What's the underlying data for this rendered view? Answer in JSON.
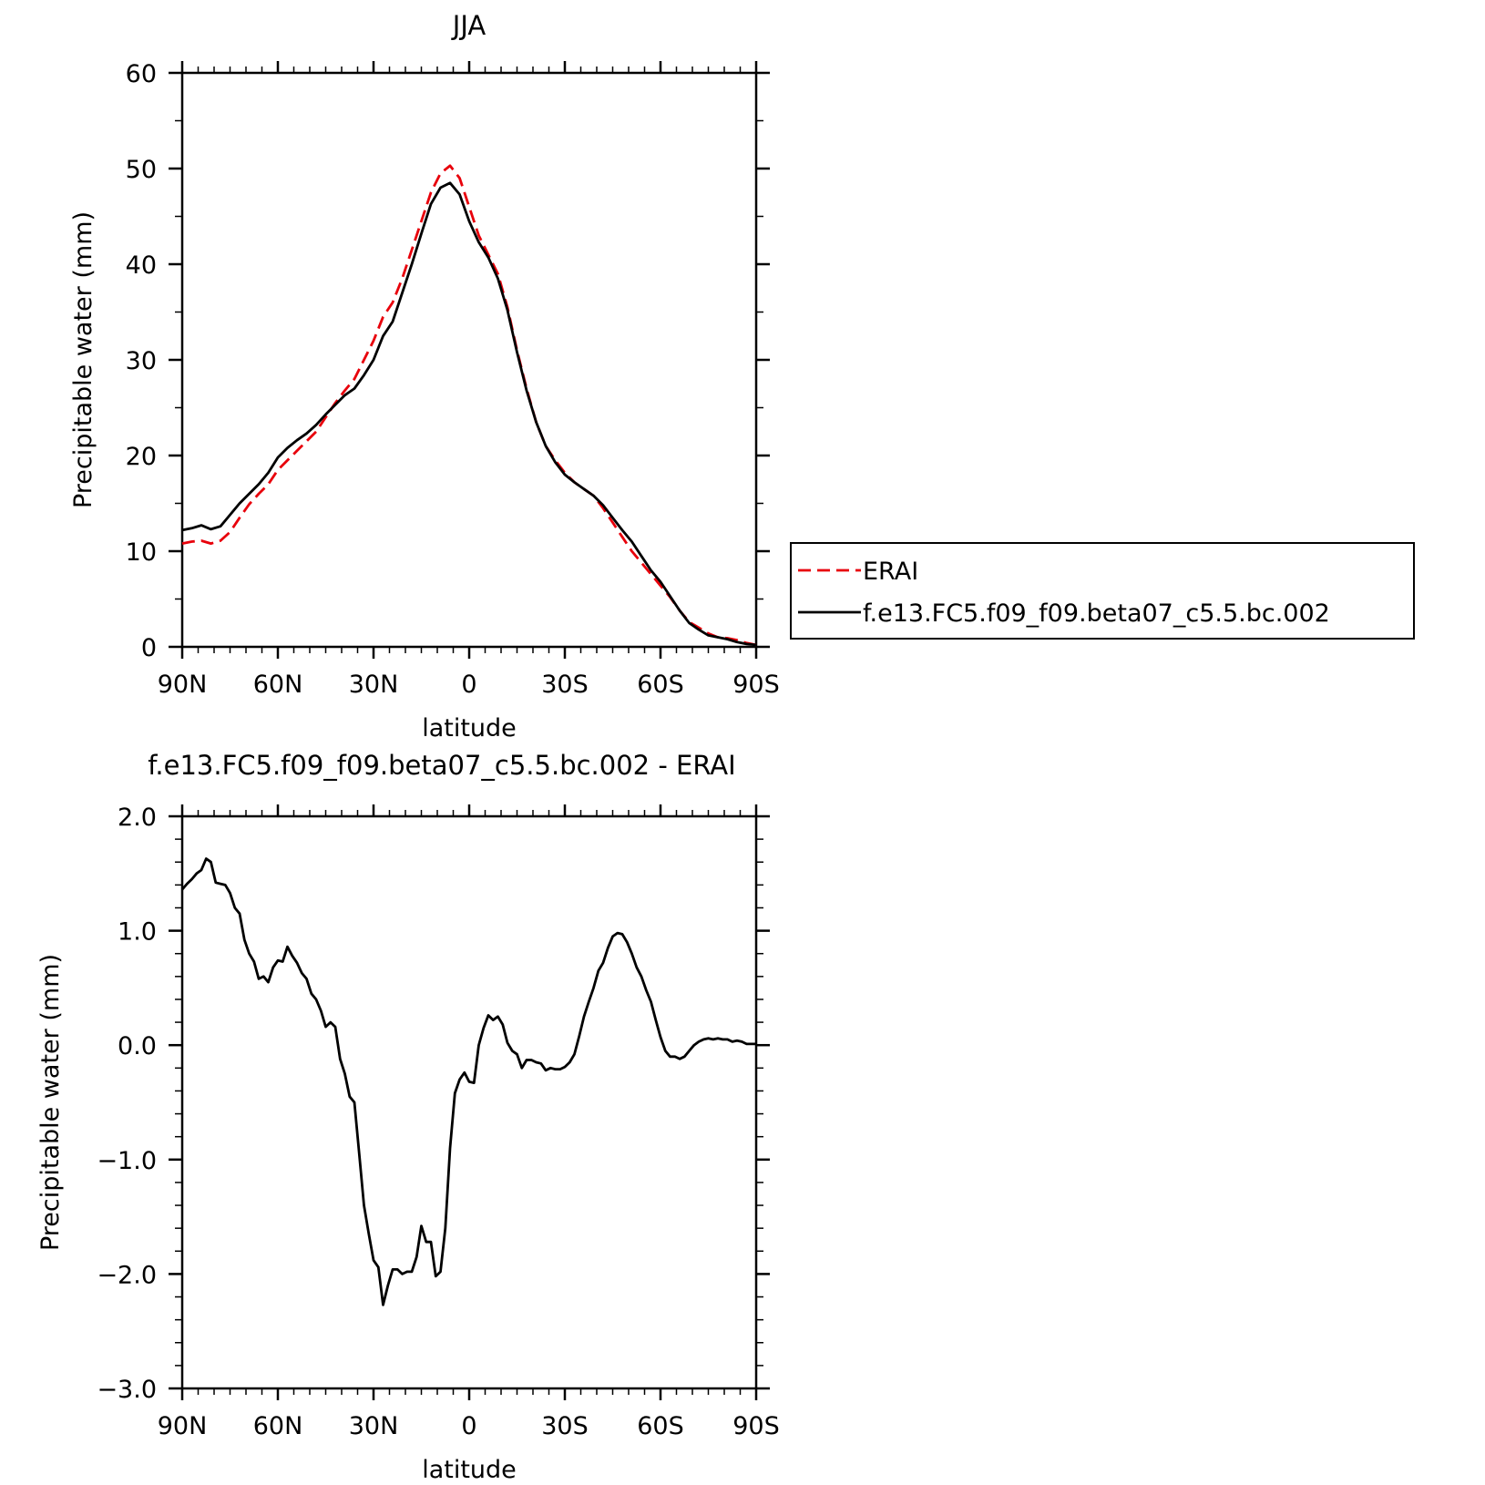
{
  "chart_data": [
    {
      "type": "line",
      "title": "JJA",
      "xlabel": "latitude",
      "ylabel": "Precipitable water (mm)",
      "xlim": [
        90,
        -90
      ],
      "ylim": [
        0,
        60
      ],
      "x_ticks": [
        90,
        60,
        30,
        0,
        -30,
        -60,
        -90
      ],
      "x_tick_labels": [
        "90N",
        "60N",
        "30N",
        "0",
        "30S",
        "60S",
        "90S"
      ],
      "y_ticks": [
        0,
        10,
        20,
        30,
        40,
        50,
        60
      ],
      "y_tick_labels": [
        "0",
        "10",
        "20",
        "30",
        "40",
        "50",
        "60"
      ],
      "grid": false,
      "legend_position": "right",
      "series": [
        {
          "name": "ERAI",
          "color": "#e8000b",
          "dash": "dashed",
          "x": [
            90,
            87,
            84,
            81,
            78,
            75,
            72,
            69,
            66,
            63,
            60,
            57,
            54,
            51,
            48,
            45,
            42,
            39,
            36,
            33,
            30,
            27,
            24,
            21,
            18,
            15,
            12,
            9,
            6,
            3,
            0,
            -3,
            -6,
            -9,
            -12,
            -15,
            -18,
            -21,
            -24,
            -27,
            -30,
            -33,
            -36,
            -39,
            -42,
            -45,
            -48,
            -51,
            -54,
            -57,
            -60,
            -63,
            -66,
            -69,
            -72,
            -75,
            -78,
            -81,
            -84,
            -87,
            -90
          ],
          "y": [
            10.8,
            11.0,
            11.1,
            10.8,
            11.1,
            12.0,
            13.5,
            14.9,
            16.0,
            17.0,
            18.5,
            19.5,
            20.5,
            21.5,
            22.5,
            24.0,
            25.5,
            26.8,
            28.0,
            30.0,
            32.0,
            34.5,
            36.0,
            38.5,
            41.5,
            44.5,
            47.5,
            49.5,
            50.3,
            49.0,
            46.0,
            43.0,
            41.0,
            39.0,
            35.5,
            31.0,
            27.0,
            23.5,
            21.0,
            19.5,
            18.2,
            17.2,
            16.5,
            15.8,
            14.5,
            13.0,
            11.5,
            10.0,
            8.8,
            7.6,
            6.4,
            5.2,
            3.8,
            2.6,
            2.0,
            1.4,
            1.0,
            0.9,
            0.7,
            0.4,
            0.2
          ]
        },
        {
          "name": "f.e13.FC5.f09_f09.beta07_c5.5.bc.002",
          "color": "#000000",
          "dash": "solid",
          "x": [
            90,
            87,
            84,
            81,
            78,
            75,
            72,
            69,
            66,
            63,
            60,
            57,
            54,
            51,
            48,
            45,
            42,
            39,
            36,
            33,
            30,
            27,
            24,
            21,
            18,
            15,
            12,
            9,
            6,
            3,
            0,
            -3,
            -6,
            -9,
            -12,
            -15,
            -18,
            -21,
            -24,
            -27,
            -30,
            -33,
            -36,
            -39,
            -42,
            -45,
            -48,
            -51,
            -54,
            -57,
            -60,
            -63,
            -66,
            -69,
            -72,
            -75,
            -78,
            -81,
            -84,
            -87,
            -90
          ],
          "y": [
            12.2,
            12.4,
            12.7,
            12.3,
            12.6,
            13.8,
            15.0,
            16.0,
            17.0,
            18.2,
            19.8,
            20.8,
            21.6,
            22.3,
            23.2,
            24.3,
            25.3,
            26.3,
            27.0,
            28.4,
            30.0,
            32.5,
            34.0,
            37.0,
            40.0,
            43.2,
            46.3,
            48.0,
            48.5,
            47.3,
            44.5,
            42.3,
            40.7,
            38.5,
            35.2,
            30.8,
            26.8,
            23.5,
            21.0,
            19.3,
            18.0,
            17.2,
            16.5,
            15.8,
            14.8,
            13.5,
            12.2,
            11.0,
            9.5,
            8.0,
            6.8,
            5.3,
            3.8,
            2.5,
            1.8,
            1.2,
            1.0,
            0.8,
            0.5,
            0.3,
            0.2
          ]
        }
      ]
    },
    {
      "type": "line",
      "title": "f.e13.FC5.f09_f09.beta07_c5.5.bc.002 - ERAI",
      "xlabel": "latitude",
      "ylabel": "Precipitable water (mm)",
      "xlim": [
        90,
        -90
      ],
      "ylim": [
        -3.0,
        2.0
      ],
      "x_ticks": [
        90,
        60,
        30,
        0,
        -30,
        -60,
        -90
      ],
      "x_tick_labels": [
        "90N",
        "60N",
        "30N",
        "0",
        "30S",
        "60S",
        "90S"
      ],
      "y_ticks": [
        2.0,
        1.0,
        0.0,
        -1.0,
        -2.0,
        -3.0
      ],
      "y_tick_labels": [
        "2.0",
        "1.0",
        "0.0",
        "−1.0",
        "−2.0",
        "−3.0"
      ],
      "grid": false,
      "series": [
        {
          "name": "",
          "color": "#000000",
          "dash": "solid",
          "x": [
            90,
            88.5,
            87,
            85.5,
            84,
            82.5,
            81,
            79.5,
            78,
            76.5,
            75,
            73.5,
            72,
            70.5,
            69,
            67.5,
            66,
            64.5,
            63,
            61.5,
            60,
            58.5,
            57,
            55.5,
            54,
            52.5,
            51,
            49.5,
            48,
            46.5,
            45,
            43.5,
            42,
            40.5,
            39,
            37.5,
            36,
            34.5,
            33,
            31.5,
            30,
            28.5,
            27,
            25.5,
            24,
            22.5,
            21,
            19.5,
            18,
            16.5,
            15,
            13.5,
            12,
            10.5,
            9,
            7.5,
            6,
            4.5,
            3,
            1.5,
            0,
            -1.5,
            -3,
            -4.5,
            -6,
            -7.5,
            -9,
            -10.5,
            -12,
            -13.5,
            -15,
            -16.5,
            -18,
            -19.5,
            -21,
            -22.5,
            -24,
            -25.5,
            -27,
            -28.5,
            -30,
            -31.5,
            -33,
            -34.5,
            -36,
            -37.5,
            -39,
            -40.5,
            -42,
            -43.5,
            -45,
            -46.5,
            -48,
            -49.5,
            -51,
            -52.5,
            -54,
            -55.5,
            -57,
            -58.5,
            -60,
            -61.5,
            -63,
            -64.5,
            -66,
            -67.5,
            -69,
            -70.5,
            -72,
            -73.5,
            -75,
            -76.5,
            -78,
            -79.5,
            -81,
            -82.5,
            -84,
            -85.5,
            -87,
            -88.5,
            -90
          ],
          "y": [
            1.36,
            1.41,
            1.45,
            1.5,
            1.53,
            1.63,
            1.6,
            1.42,
            1.41,
            1.4,
            1.33,
            1.2,
            1.15,
            0.92,
            0.8,
            0.73,
            0.58,
            0.6,
            0.55,
            0.68,
            0.74,
            0.73,
            0.86,
            0.78,
            0.72,
            0.63,
            0.58,
            0.45,
            0.4,
            0.3,
            0.16,
            0.2,
            0.16,
            -0.12,
            -0.25,
            -0.45,
            -0.5,
            -0.95,
            -1.4,
            -1.65,
            -1.88,
            -1.94,
            -2.27,
            -2.1,
            -1.96,
            -1.96,
            -2.0,
            -1.98,
            -1.98,
            -1.85,
            -1.58,
            -1.72,
            -1.72,
            -2.02,
            -1.98,
            -1.6,
            -0.9,
            -0.42,
            -0.3,
            -0.24,
            -0.32,
            -0.33,
            0.0,
            0.15,
            0.26,
            0.22,
            0.25,
            0.18,
            0.02,
            -0.05,
            -0.08,
            -0.2,
            -0.13,
            -0.13,
            -0.15,
            -0.16,
            -0.22,
            -0.2,
            -0.21,
            -0.21,
            -0.19,
            -0.15,
            -0.08,
            0.08,
            0.25,
            0.38,
            0.5,
            0.65,
            0.72,
            0.85,
            0.95,
            0.98,
            0.97,
            0.9,
            0.8,
            0.68,
            0.6,
            0.48,
            0.38,
            0.22,
            0.07,
            -0.05,
            -0.1,
            -0.1,
            -0.12,
            -0.1,
            -0.05,
            0.0,
            0.03,
            0.05,
            0.06,
            0.05,
            0.06,
            0.05,
            0.05,
            0.03,
            0.04,
            0.03,
            0.01,
            0.01,
            0.01
          ]
        }
      ]
    }
  ]
}
